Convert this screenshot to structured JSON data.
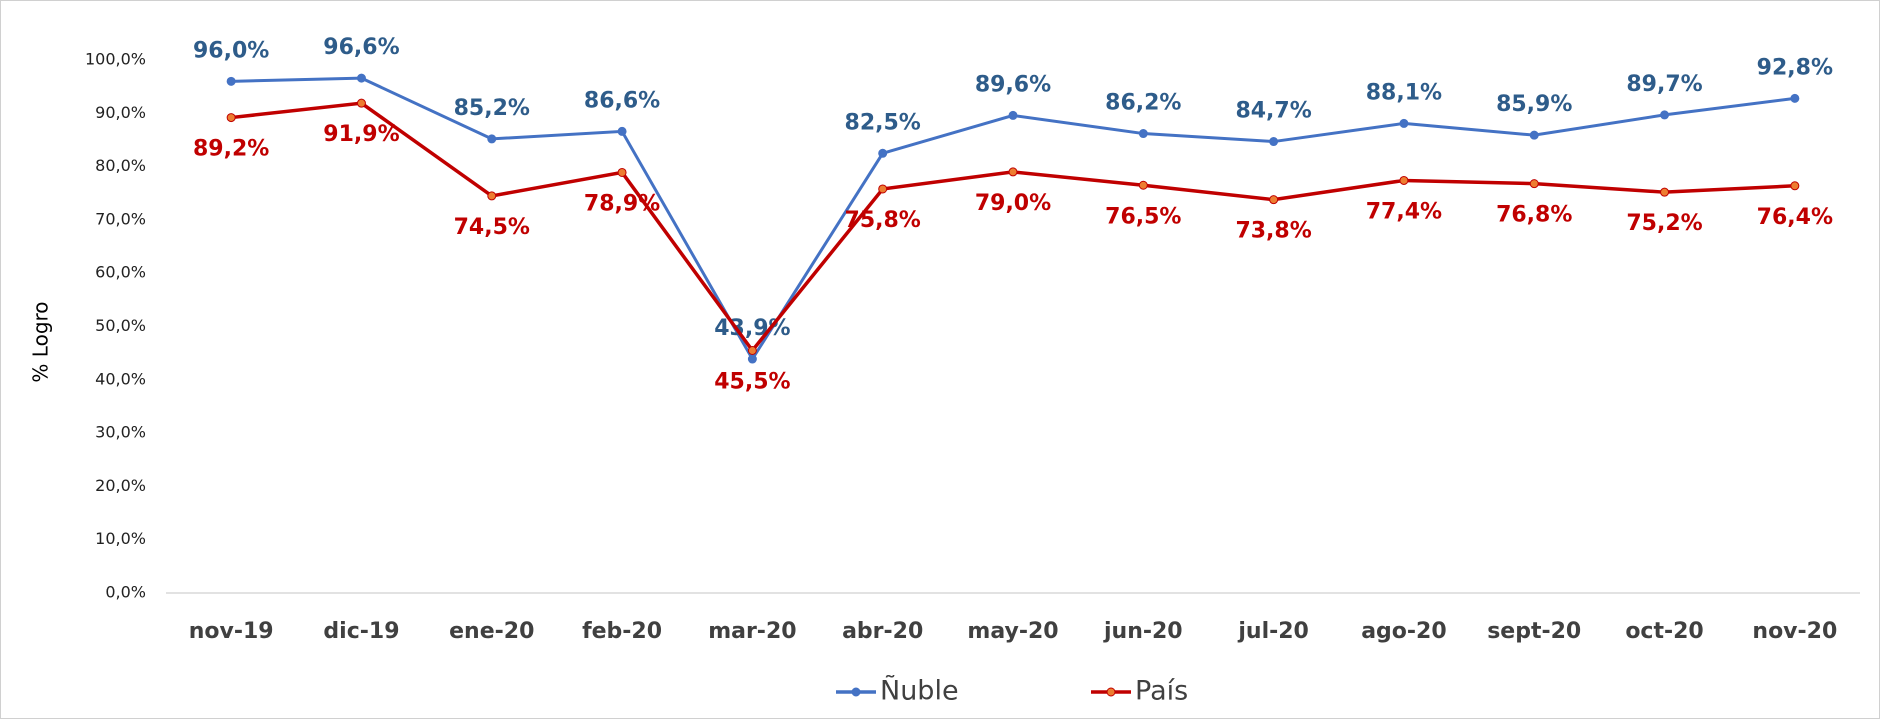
{
  "chart_data": {
    "type": "line",
    "y_label": "% Logro",
    "categories": [
      "nov-19",
      "dic-19",
      "ene-20",
      "feb-20",
      "mar-20",
      "abr-20",
      "may-20",
      "jun-20",
      "jul-20",
      "ago-20",
      "sept-20",
      "oct-20",
      "nov-20"
    ],
    "series": [
      {
        "name": "Ñuble",
        "color": "#4472c4",
        "label_color": "#2e5c8a",
        "values": [
          96.0,
          96.6,
          85.2,
          86.6,
          43.9,
          82.5,
          89.6,
          86.2,
          84.7,
          88.1,
          85.9,
          89.7,
          92.8
        ],
        "value_labels": [
          "96,0%",
          "96,6%",
          "85,2%",
          "86,6%",
          "43,9%",
          "82,5%",
          "89,6%",
          "86,2%",
          "84,7%",
          "88,1%",
          "85,9%",
          "89,7%",
          "92,8%"
        ]
      },
      {
        "name": "País",
        "color": "#c00000",
        "label_color": "#c00000",
        "marker_color": "#ed7d31",
        "values": [
          89.2,
          91.9,
          74.5,
          78.9,
          45.5,
          75.8,
          79.0,
          76.5,
          73.8,
          77.4,
          76.8,
          75.2,
          76.4
        ],
        "value_labels": [
          "89,2%",
          "91,9%",
          "74,5%",
          "78,9%",
          "45,5%",
          "75,8%",
          "79,0%",
          "76,5%",
          "73,8%",
          "77,4%",
          "76,8%",
          "75,2%",
          "76,4%"
        ]
      }
    ],
    "ylim": [
      0,
      100
    ],
    "yticks": [
      {
        "value": 0,
        "label": "0,0%"
      },
      {
        "value": 10,
        "label": "10,0%"
      },
      {
        "value": 20,
        "label": "20,0%"
      },
      {
        "value": 30,
        "label": "30,0%"
      },
      {
        "value": 40,
        "label": "40,0%"
      },
      {
        "value": 50,
        "label": "50,0%"
      },
      {
        "value": 60,
        "label": "60,0%"
      },
      {
        "value": 70,
        "label": "70,0%"
      },
      {
        "value": 80,
        "label": "80,0%"
      },
      {
        "value": 90,
        "label": "90,0%"
      },
      {
        "value": 100,
        "label": "100,0%"
      }
    ],
    "grid": false,
    "legend": "bottom"
  }
}
